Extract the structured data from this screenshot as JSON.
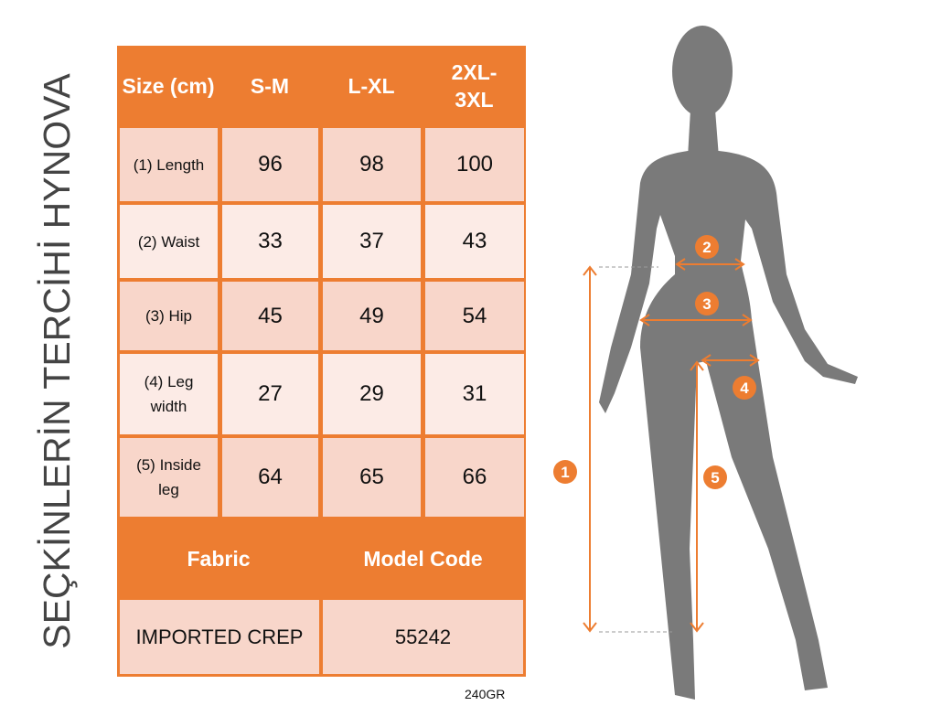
{
  "table": {
    "header": [
      "Size (cm)",
      "S-M",
      "L-XL",
      "2XL-3XL"
    ],
    "rows": [
      {
        "label": "(1) Length",
        "values": [
          "96",
          "98",
          "100"
        ]
      },
      {
        "label": "(2) Waist",
        "values": [
          "33",
          "37",
          "43"
        ]
      },
      {
        "label": "(3) Hip",
        "values": [
          "45",
          "49",
          "54"
        ]
      },
      {
        "label": "(4) Leg width",
        "values": [
          "27",
          "29",
          "31"
        ]
      },
      {
        "label": "(5) Inside leg",
        "values": [
          "64",
          "65",
          "66"
        ]
      }
    ],
    "footer_headers": [
      "Fabric",
      "Model Code"
    ],
    "footer_values": [
      "IMPORTED CREP",
      "55242"
    ]
  },
  "weight_note": "240GR",
  "watermark": "SEÇKİNLERİN TERCİHİ HYNOVA",
  "figure": {
    "markers": [
      "1",
      "2",
      "3",
      "4",
      "5"
    ]
  },
  "colors": {
    "accent": "#ED7D31",
    "row_dark": "#F8D6CA",
    "row_light": "#FCEBE6",
    "silhouette": "#7A7A7A"
  }
}
